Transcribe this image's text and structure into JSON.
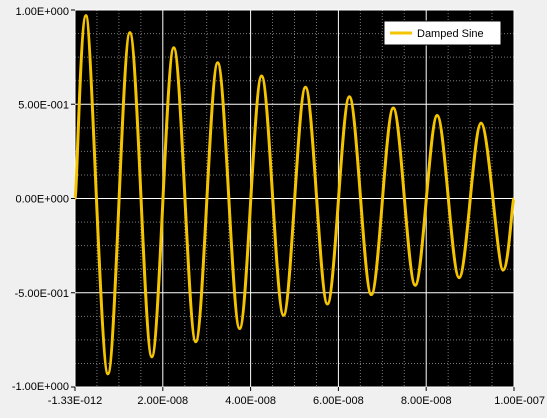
{
  "chart_data": {
    "type": "line",
    "title": "",
    "xlabel": "",
    "ylabel": "",
    "xlim": [
      -1.33e-12,
      1e-07
    ],
    "ylim": [
      -1.0,
      1.0
    ],
    "x_tick_labels": [
      "-1.33E-012",
      "2.00E-008",
      "4.00E-008",
      "6.00E-008",
      "8.00E-008",
      "1.00E-007"
    ],
    "y_tick_labels": [
      "1.00E+000",
      "5.00E-001",
      "0.00E+000",
      "-5.00E-001",
      "-1.00E+000"
    ],
    "grid": true,
    "minor_grid": true,
    "legend": {
      "position": "top-right",
      "entries": [
        "Damped Sine"
      ]
    },
    "series": [
      {
        "name": "Damped Sine",
        "color": "#f5c400",
        "x": [
          0.0,
          2.5e-09,
          7.5e-09,
          1.25e-08,
          1.75e-08,
          2.25e-08,
          2.75e-08,
          3.25e-08,
          3.75e-08,
          4.25e-08,
          4.75e-08,
          5.25e-08,
          5.75e-08,
          6.25e-08,
          6.75e-08,
          7.25e-08,
          7.75e-08,
          8.25e-08,
          8.75e-08,
          9.25e-08,
          9.75e-08,
          1e-07
        ],
        "y": [
          0.0,
          0.97,
          -0.93,
          0.88,
          -0.84,
          0.8,
          -0.76,
          0.72,
          -0.69,
          0.65,
          -0.62,
          0.59,
          -0.56,
          0.54,
          -0.51,
          0.48,
          -0.46,
          0.44,
          -0.42,
          0.4,
          -0.38,
          0.0
        ]
      }
    ]
  }
}
